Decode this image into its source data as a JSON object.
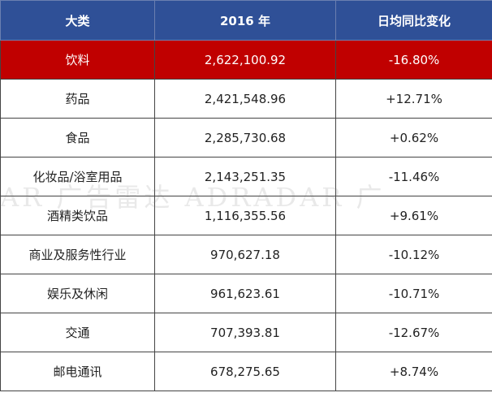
{
  "table": {
    "header": [
      "大类",
      "2016 年",
      "日均同比变化"
    ],
    "rows": [
      [
        "饮料",
        "2,622,100.92",
        "-16.80%"
      ],
      [
        "药品",
        "2,421,548.96",
        "+12.71%"
      ],
      [
        "食品",
        "2,285,730.68",
        "+0.62%"
      ],
      [
        "化妆品/浴室用品",
        "2,143,251.35",
        "-11.46%"
      ],
      [
        "酒精类饮品",
        "1,116,355.56",
        "+9.61%"
      ],
      [
        "商业及服务性行业",
        "970,627.18",
        "-10.12%"
      ],
      [
        "娱乐及休闲",
        "961,623.61",
        "-10.71%"
      ],
      [
        "交通",
        "707,393.81",
        "-12.67%"
      ],
      [
        "邮电通讯",
        "678,275.65",
        "+8.74%"
      ]
    ]
  },
  "watermark": "AR 广告雷达 ADRADAR 广"
}
